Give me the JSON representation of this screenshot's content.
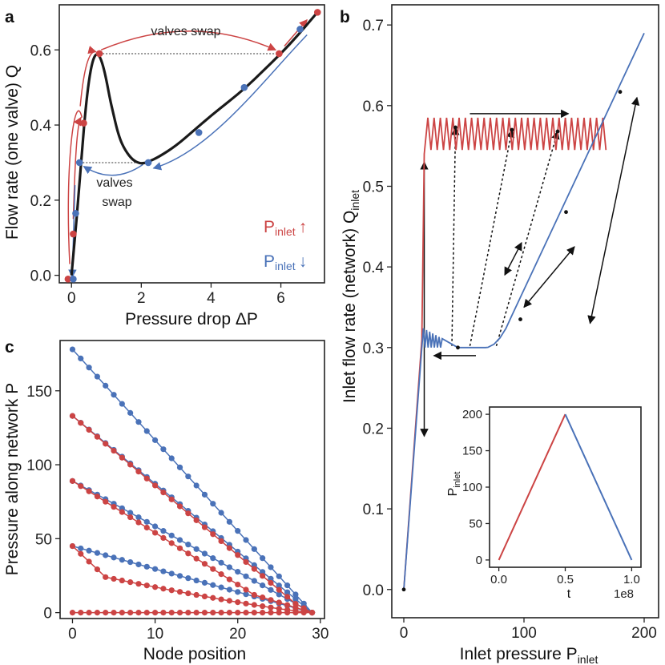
{
  "colors": {
    "red": "#cc4444",
    "blue": "#4a72b8",
    "black": "#1a1a1a"
  },
  "panel_a": {
    "label": "a",
    "xlabel": "Pressure drop ΔP",
    "ylabel": "Flow rate (one valve) Q",
    "annot_top": "valves swap",
    "annot_bottom_1": "valves",
    "annot_bottom_2": "swap",
    "legend_red": "P",
    "legend_red_sub": "inlet",
    "legend_red_arrow": "↑",
    "legend_blue": "P",
    "legend_blue_sub": "inlet",
    "legend_blue_arrow": "↓"
  },
  "panel_b": {
    "label": "b",
    "xlabel": "Inlet pressure P",
    "xlabel_sub": "inlet",
    "ylabel": "Inlet flow rate (network) Q",
    "ylabel_sub": "inlet"
  },
  "panel_b_inset": {
    "xlabel": "t",
    "ylabel": "P",
    "ylabel_sub": "inlet",
    "offset_text": "1e8"
  },
  "panel_c": {
    "label": "c",
    "xlabel": "Node position",
    "ylabel": "Pressure along network P"
  },
  "chart_data": [
    {
      "id": "a",
      "type": "line",
      "title": "",
      "xlabel": "Pressure drop ΔP",
      "ylabel": "Flow rate (one valve) Q",
      "xlim": [
        -0.35,
        7.25
      ],
      "ylim": [
        -0.02,
        0.72
      ],
      "xticks": [
        0,
        2,
        4,
        6
      ],
      "yticks": [
        0.0,
        0.2,
        0.4,
        0.6
      ],
      "tick_labels_x": [
        "0",
        "2",
        "4",
        "6"
      ],
      "tick_labels_y": [
        "0.0",
        "0.2",
        "0.4",
        "0.6"
      ],
      "curve": {
        "x": [
          0,
          0.1,
          0.2,
          0.3,
          0.4,
          0.5,
          0.6,
          0.7,
          0.8,
          0.9,
          1.0,
          1.1,
          1.2,
          1.3,
          1.4,
          1.5,
          1.6,
          1.7,
          1.8,
          1.9,
          2.0,
          2.1,
          2.2,
          2.5,
          3.0,
          3.5,
          4.0,
          4.5,
          5.0,
          5.5,
          6.0,
          6.5,
          7.0
        ],
        "y": [
          0.0,
          0.1,
          0.21,
          0.33,
          0.44,
          0.52,
          0.57,
          0.59,
          0.585,
          0.56,
          0.52,
          0.47,
          0.43,
          0.39,
          0.36,
          0.34,
          0.325,
          0.313,
          0.305,
          0.3,
          0.298,
          0.299,
          0.302,
          0.315,
          0.345,
          0.385,
          0.425,
          0.462,
          0.5,
          0.545,
          0.59,
          0.64,
          0.695
        ]
      },
      "series": [
        {
          "name": "P_inlet increasing",
          "color": "red",
          "x": [
            -0.1,
            0.05,
            0.35,
            0.8,
            5.95,
            7.05
          ],
          "y": [
            -0.01,
            0.11,
            0.405,
            0.59,
            0.59,
            0.7
          ]
        },
        {
          "name": "P_inlet decreasing",
          "color": "blue",
          "x": [
            6.55,
            4.95,
            3.65,
            2.2,
            0.23,
            0.12,
            0.05
          ],
          "y": [
            0.655,
            0.5,
            0.38,
            0.3,
            0.3,
            0.165,
            -0.01
          ]
        }
      ],
      "annotations": [
        "valves swap",
        "valves swap"
      ],
      "legend": [
        {
          "label": "P_inlet ↑",
          "color": "red"
        },
        {
          "label": "P_inlet ↓",
          "color": "blue"
        }
      ]
    },
    {
      "id": "b",
      "type": "line",
      "title": "",
      "xlabel": "Inlet pressure P_inlet",
      "ylabel": "Inlet flow rate (network) Q_inlet",
      "xlim": [
        -10,
        212
      ],
      "ylim": [
        -0.035,
        0.725
      ],
      "xticks": [
        0,
        100,
        200
      ],
      "yticks": [
        0.0,
        0.1,
        0.2,
        0.3,
        0.4,
        0.5,
        0.6,
        0.7
      ],
      "tick_labels_x": [
        "0",
        "100",
        "200"
      ],
      "tick_labels_y": [
        "0.0",
        "0.1",
        "0.2",
        "0.3",
        "0.4",
        "0.5",
        "0.6",
        "0.7"
      ],
      "series": [
        {
          "name": "P_inlet increasing (sawtooth)",
          "color": "red",
          "x_range": [
            15,
            167
          ],
          "y_range": [
            0.54,
            0.585
          ]
        },
        {
          "name": "P_inlet decreasing",
          "color": "blue",
          "x": [
            0,
            15,
            45,
            68,
            90,
            110,
            140,
            170,
            200
          ],
          "y": [
            0.0,
            0.31,
            0.3,
            0.3,
            0.34,
            0.42,
            0.5,
            0.6,
            0.69
          ]
        }
      ],
      "points": [
        {
          "x": 0,
          "y": 0.0
        },
        {
          "x": 45,
          "y": 0.3
        },
        {
          "x": 97,
          "y": 0.335
        },
        {
          "x": 135,
          "y": 0.468
        },
        {
          "x": 180,
          "y": 0.617
        },
        {
          "x": 43,
          "y": 0.573
        },
        {
          "x": 90,
          "y": 0.57
        },
        {
          "x": 128,
          "y": 0.568
        }
      ]
    },
    {
      "id": "b-inset",
      "type": "line",
      "xlabel": "t",
      "ylabel": "P_inlet",
      "xlim": [
        -0.07,
        1.07
      ],
      "ylim": [
        -10,
        210
      ],
      "xticks": [
        0.0,
        0.5,
        1.0
      ],
      "yticks": [
        0,
        50,
        100,
        150,
        200
      ],
      "tick_labels_x": [
        "0.0",
        "0.5",
        "1.0"
      ],
      "tick_labels_y": [
        "0",
        "50",
        "100",
        "150",
        "200"
      ],
      "offset_text": "1e8",
      "series": [
        {
          "name": "up",
          "color": "red",
          "x": [
            0.0,
            0.5
          ],
          "y": [
            0,
            200
          ]
        },
        {
          "name": "down",
          "color": "blue",
          "x": [
            0.5,
            1.0
          ],
          "y": [
            200,
            0
          ]
        }
      ]
    },
    {
      "id": "c",
      "type": "line",
      "title": "",
      "xlabel": "Node position",
      "ylabel": "Pressure along network P",
      "xlim": [
        -1.5,
        30.5
      ],
      "ylim": [
        -4,
        184
      ],
      "xticks": [
        0,
        10,
        20,
        30
      ],
      "yticks": [
        0,
        50,
        100,
        150
      ],
      "tick_labels_x": [
        "0",
        "10",
        "20",
        "30"
      ],
      "tick_labels_y": [
        "0",
        "50",
        "100",
        "150"
      ],
      "nodes": 30,
      "series": [
        {
          "name": "blue P=178",
          "color": "blue",
          "start": 178,
          "profile": "linear"
        },
        {
          "name": "blue P=133",
          "color": "blue",
          "start": 133,
          "profile": "linear"
        },
        {
          "name": "red P=133",
          "color": "red",
          "start": 133,
          "profile": "drop",
          "knee_x": 27,
          "knee_y": 6
        },
        {
          "name": "blue P=89",
          "color": "blue",
          "start": 89,
          "profile": "linear"
        },
        {
          "name": "red P=89",
          "color": "red",
          "start": 89,
          "profile": "drop",
          "knee_x": 22,
          "knee_y": 12
        },
        {
          "name": "blue P=45",
          "color": "blue",
          "start": 45,
          "profile": "linear"
        },
        {
          "name": "red P=45",
          "color": "red",
          "start": 45,
          "profile": "drop",
          "knee_x": 4,
          "knee_y": 24
        },
        {
          "name": "red P=0",
          "color": "red",
          "start": 0,
          "profile": "flat"
        }
      ]
    }
  ]
}
